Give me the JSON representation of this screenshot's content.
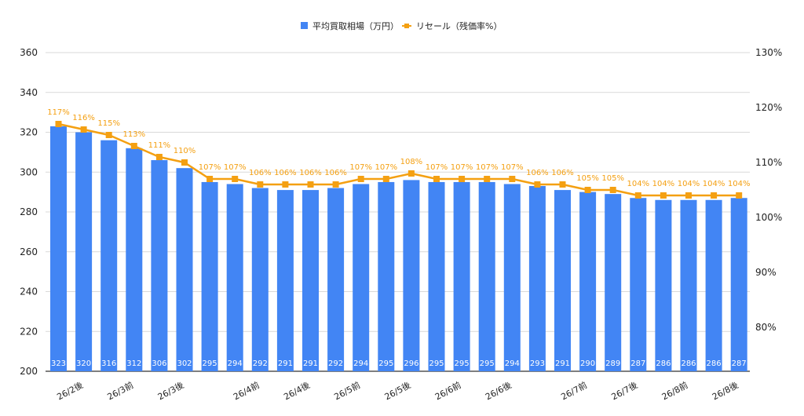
{
  "chart_data": {
    "type": "bar",
    "categories": [
      "",
      "26/2後",
      "",
      "26/3前",
      "",
      "26/3後",
      "",
      "",
      "26/4前",
      "",
      "26/4後",
      "",
      "26/5前",
      "",
      "26/5後",
      "",
      "26/6前",
      "",
      "26/6後",
      "",
      "",
      "26/7前",
      "",
      "26/7後",
      "",
      "26/8前",
      "",
      "26/8後"
    ],
    "series": [
      {
        "name": "平均買取相場（万円）",
        "type": "bar",
        "axis": "left",
        "color": "#4285f4",
        "values": [
          323,
          320,
          316,
          312,
          306,
          302,
          295,
          294,
          292,
          291,
          291,
          292,
          294,
          295,
          296,
          295,
          295,
          295,
          294,
          293,
          291,
          290,
          289,
          287,
          286,
          286,
          286,
          287
        ],
        "labels": [
          "323",
          "320",
          "316",
          "312",
          "306",
          "302",
          "295",
          "294",
          "292",
          "291",
          "291",
          "292",
          "294",
          "295",
          "296",
          "295",
          "295",
          "295",
          "294",
          "293",
          "291",
          "290",
          "289",
          "287",
          "286",
          "286",
          "286",
          "287"
        ]
      },
      {
        "name": "リセール（残価率%）",
        "type": "line",
        "axis": "right",
        "color": "#f4a012",
        "values": [
          117,
          116,
          115,
          113,
          111,
          110,
          107,
          107,
          106,
          106,
          106,
          106,
          107,
          107,
          108,
          107,
          107,
          107,
          107,
          106,
          106,
          105,
          105,
          104,
          104,
          104,
          104,
          104
        ],
        "labels": [
          "117%",
          "116%",
          "115%",
          "113%",
          "111%",
          "110%",
          "107%",
          "107%",
          "106%",
          "106%",
          "106%",
          "106%",
          "107%",
          "107%",
          "108%",
          "107%",
          "107%",
          "107%",
          "107%",
          "106%",
          "106%",
          "105%",
          "105%",
          "104%",
          "104%",
          "104%",
          "104%",
          "104%"
        ]
      }
    ],
    "y_left": {
      "min": 200,
      "max": 360,
      "ticks": [
        "200",
        "220",
        "240",
        "260",
        "280",
        "300",
        "320",
        "340",
        "360"
      ],
      "tick_values": [
        200,
        220,
        240,
        260,
        280,
        300,
        320,
        340,
        360
      ]
    },
    "y_right": {
      "min": 72,
      "max": 130,
      "ticks": [
        "80%",
        "90%",
        "100%",
        "110%",
        "120%",
        "130%"
      ],
      "tick_values": [
        80,
        90,
        100,
        110,
        120,
        130
      ]
    },
    "grid": true,
    "legend_position": "top-center",
    "legend": [
      {
        "label": "平均買取相場（万円）",
        "color": "#4285f4",
        "shape": "square"
      },
      {
        "label": "リセール（残価率%）",
        "color": "#f4a012",
        "shape": "line-marker"
      }
    ],
    "colors": {
      "grid": "#d9d9d9",
      "axis": "#333333"
    }
  }
}
